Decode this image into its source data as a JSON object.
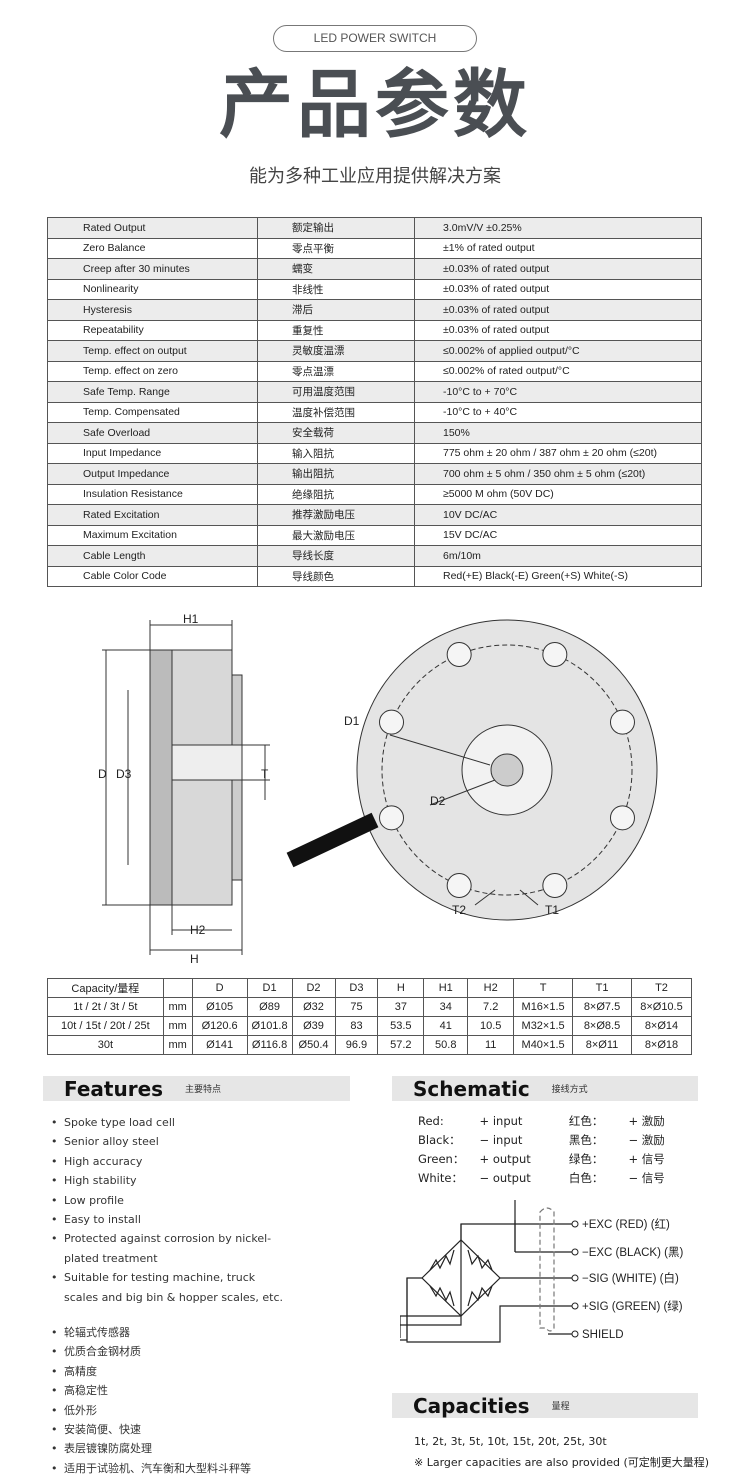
{
  "header": {
    "pill": "LED POWER SWITCH",
    "title": "产品参数",
    "subtitle": "能为多种工业应用提供解决方案"
  },
  "specs": [
    [
      "Rated Output",
      "额定输出",
      "3.0mV/V ±0.25%"
    ],
    [
      "Zero Balance",
      "零点平衡",
      "±1% of rated output"
    ],
    [
      "Creep after 30 minutes",
      "蠕变",
      "±0.03% of rated output"
    ],
    [
      "Nonlinearity",
      "非线性",
      "±0.03% of rated output"
    ],
    [
      "Hysteresis",
      "滞后",
      "±0.03% of rated output"
    ],
    [
      "Repeatability",
      "重复性",
      "±0.03% of rated output"
    ],
    [
      "Temp. effect on output",
      "灵敏度温漂",
      "≤0.002% of applied output/°C"
    ],
    [
      "Temp. effect on zero",
      "零点温漂",
      "≤0.002% of rated output/°C"
    ],
    [
      "Safe Temp. Range",
      "可用温度范围",
      "-10°C to + 70°C"
    ],
    [
      "Temp. Compensated",
      "温度补偿范围",
      "-10°C to + 40°C"
    ],
    [
      "Safe Overload",
      "安全载荷",
      "150%"
    ],
    [
      "Input Impedance",
      "输入阻抗",
      "775 ohm ± 20 ohm / 387 ohm ± 20 ohm (≤20t)"
    ],
    [
      "Output Impedance",
      "输出阻抗",
      "700 ohm ± 5 ohm / 350 ohm ± 5 ohm (≤20t)"
    ],
    [
      "Insulation Resistance",
      "绝缘阻抗",
      "≥5000 M ohm (50V DC)"
    ],
    [
      "Rated Excitation",
      "推荐激励电压",
      "10V DC/AC"
    ],
    [
      "Maximum Excitation",
      "最大激励电压",
      "15V DC/AC"
    ],
    [
      "Cable Length",
      "导线长度",
      "6m/10m"
    ],
    [
      "Cable Color Code",
      "导线颜色",
      "Red(+E) Black(-E) Green(+S) White(-S)"
    ]
  ],
  "drawing_labels": {
    "H1": "H1",
    "D": "D",
    "D3": "D3",
    "T": "T",
    "H2": "H2",
    "H": "H",
    "D1": "D1",
    "D2": "D2",
    "T1": "T1",
    "T2": "T2"
  },
  "dims": {
    "header": [
      "Capacity/量程",
      "",
      "D",
      "D1",
      "D2",
      "D3",
      "H",
      "H1",
      "H2",
      "T",
      "T1",
      "T2"
    ],
    "rows": [
      [
        "1t / 2t / 3t / 5t",
        "mm",
        "Ø105",
        "Ø89",
        "Ø32",
        "75",
        "37",
        "34",
        "7.2",
        "M16×1.5",
        "8×Ø7.5",
        "8×Ø10.5"
      ],
      [
        "10t / 15t / 20t / 25t",
        "mm",
        "Ø120.6",
        "Ø101.8",
        "Ø39",
        "83",
        "53.5",
        "41",
        "10.5",
        "M32×1.5",
        "8×Ø8.5",
        "8×Ø14"
      ],
      [
        "30t",
        "mm",
        "Ø141",
        "Ø116.8",
        "Ø50.4",
        "96.9",
        "57.2",
        "50.8",
        "11",
        "M40×1.5",
        "8×Ø11",
        "8×Ø18"
      ]
    ]
  },
  "features": {
    "title": "Features",
    "subtitle": "主要特点",
    "en": [
      "Spoke type load cell",
      "Senior alloy steel",
      "High accuracy",
      "High stability",
      "Low profile",
      "Easy to install",
      "Protected against corrosion by nickel-plated treatment",
      "Suitable for testing machine, truck scales and big bin & hopper scales, etc."
    ],
    "zh": [
      "轮辐式传感器",
      "优质合金钢材质",
      "高精度",
      "高稳定性",
      "低外形",
      "安装简便、快速",
      "表层镀镍防腐处理",
      "适用于试验机、汽车衡和大型料斗秤等"
    ]
  },
  "schematic": {
    "title": "Schematic",
    "subtitle": "接线方式",
    "colors": [
      [
        "Red:",
        "+ input",
        "红色：",
        "+ 激励"
      ],
      [
        "Black：",
        "− input",
        "黑色：",
        "− 激励"
      ],
      [
        "Green：",
        "+ output",
        "绿色：",
        "+ 信号"
      ],
      [
        "White：",
        "− output",
        "白色：",
        "− 信号"
      ]
    ],
    "terminals": [
      "+EXC (RED)   (红)",
      "−EXC (BLACK) (黑)",
      "−SIG (WHITE) (白)",
      "+SIG (GREEN) (绿)",
      "SHIELD"
    ]
  },
  "capacities": {
    "title": "Capacities",
    "subtitle": "量程",
    "list": "1t, 2t, 3t, 5t, 10t, 15t, 20t, 25t, 30t",
    "note": "※ Larger capacities are also provided (可定制更大量程)"
  }
}
